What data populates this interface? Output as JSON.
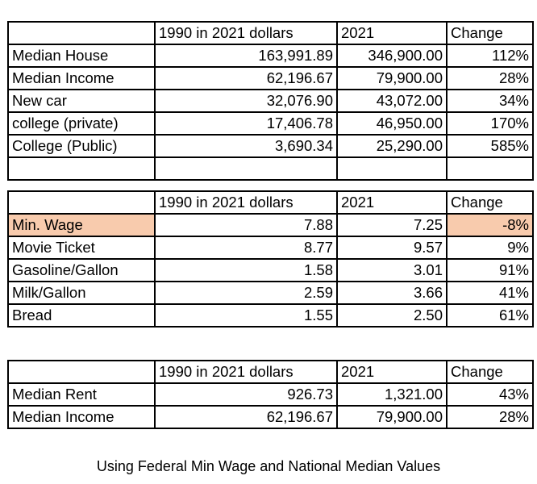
{
  "highlight_color": "#f8cbad",
  "tables": [
    {
      "header": [
        "",
        "1990 in 2021 dollars",
        "2021",
        "Change"
      ],
      "rows": [
        {
          "label": "Median House",
          "v1990": "163,991.89",
          "v2021": "346,900.00",
          "change": "112%"
        },
        {
          "label": "Median Income",
          "v1990": "62,196.67",
          "v2021": "79,900.00",
          "change": "28%"
        },
        {
          "label": "New car",
          "v1990": "32,076.90",
          "v2021": "43,072.00",
          "change": "34%"
        },
        {
          "label": "college (private)",
          "v1990": "17,406.78",
          "v2021": "46,950.00",
          "change": "170%"
        },
        {
          "label": "College (Public)",
          "v1990": "3,690.34",
          "v2021": "25,290.00",
          "change": "585%"
        },
        {
          "label": "",
          "v1990": "",
          "v2021": "",
          "change": ""
        }
      ]
    },
    {
      "header": [
        "",
        "1990 in 2021 dollars",
        "2021",
        "Change"
      ],
      "rows": [
        {
          "label": "Min. Wage",
          "v1990": "7.88",
          "v2021": "7.25",
          "change": "-8%",
          "highlight": true
        },
        {
          "label": "Movie Ticket",
          "v1990": "8.77",
          "v2021": "9.57",
          "change": "9%"
        },
        {
          "label": "Gasoline/Gallon",
          "v1990": "1.58",
          "v2021": "3.01",
          "change": "91%"
        },
        {
          "label": "Milk/Gallon",
          "v1990": "2.59",
          "v2021": "3.66",
          "change": "41%"
        },
        {
          "label": "Bread",
          "v1990": "1.55",
          "v2021": "2.50",
          "change": "61%"
        }
      ]
    },
    {
      "header": [
        "",
        "1990 in 2021 dollars",
        "2021",
        "Change"
      ],
      "rows": [
        {
          "label": "Median Rent",
          "v1990": "926.73",
          "v2021": "1,321.00",
          "change": "43%"
        },
        {
          "label": "Median Income",
          "v1990": "62,196.67",
          "v2021": "79,900.00",
          "change": "28%"
        }
      ]
    }
  ],
  "caption": "Using Federal Min Wage and National Median Values"
}
